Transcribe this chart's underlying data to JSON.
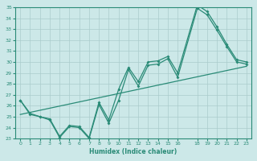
{
  "xlabel": "Humidex (Indice chaleur)",
  "x_values": [
    0,
    1,
    2,
    3,
    4,
    5,
    6,
    7,
    8,
    9,
    10,
    11,
    12,
    13,
    14,
    15,
    16,
    18,
    19,
    20,
    21,
    22,
    23
  ],
  "line_upper": [
    26.5,
    25.3,
    25.0,
    24.8,
    23.2,
    24.2,
    24.1,
    23.1,
    26.3,
    24.7,
    27.5,
    29.5,
    28.2,
    30.0,
    30.1,
    30.5,
    29.0,
    35.2,
    34.6,
    33.2,
    31.6,
    30.2,
    30.0
  ],
  "line_lower": [
    26.5,
    25.2,
    25.0,
    24.7,
    23.1,
    24.1,
    24.0,
    23.0,
    26.1,
    24.4,
    26.5,
    29.3,
    27.8,
    29.7,
    29.8,
    30.3,
    28.6,
    34.9,
    34.3,
    32.9,
    31.4,
    30.0,
    29.8
  ],
  "trend_x": [
    0,
    23
  ],
  "trend_y": [
    25.2,
    29.6
  ],
  "color": "#2a8b77",
  "bg_color": "#cce8e8",
  "grid_color": "#aacccc",
  "ylim": [
    23,
    35
  ],
  "xlim_min": -0.5,
  "xlim_max": 23.5,
  "yticks": [
    23,
    24,
    25,
    26,
    27,
    28,
    29,
    30,
    31,
    32,
    33,
    34,
    35
  ],
  "xtick_positions": [
    0,
    1,
    2,
    3,
    4,
    5,
    6,
    7,
    8,
    9,
    10,
    11,
    12,
    13,
    14,
    15,
    16,
    18,
    19,
    20,
    21,
    22,
    23
  ],
  "xtick_labels": [
    "0",
    "1",
    "2",
    "3",
    "4",
    "5",
    "6",
    "7",
    "8",
    "9",
    "10",
    "11",
    "12",
    "13",
    "14",
    "15",
    "16",
    "18",
    "19",
    "20",
    "21",
    "22",
    "23"
  ]
}
